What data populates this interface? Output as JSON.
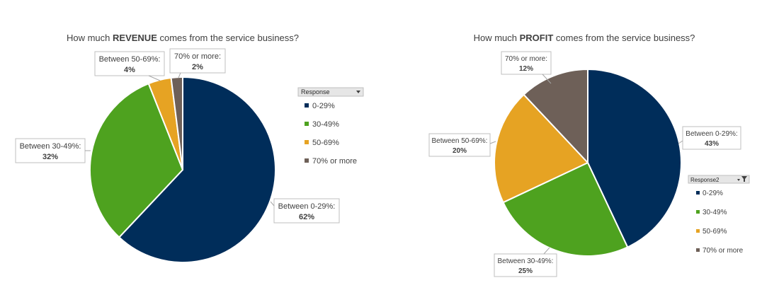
{
  "colors": {
    "0-29%": "#002d5a",
    "30-49%": "#4ea21f",
    "50-69%": "#e6a323",
    "70% or more": "#6e6058",
    "background": "#ffffff"
  },
  "chart_data": [
    {
      "type": "pie",
      "title_prefix": "How much ",
      "title_emphasis": "REVENUE",
      "title_suffix": " comes from the service business?",
      "legend_header": "Response",
      "legend_entries": [
        "0-29%",
        "30-49%",
        "50-69%",
        "70% or more"
      ],
      "legend_placement": "right",
      "series": [
        {
          "values": [
            62,
            32,
            4,
            2
          ],
          "labels": [
            "Between 0-29%:",
            "Between 30-49%:",
            "Between 50-69%:",
            "70% or more:"
          ],
          "percent_labels": [
            "62%",
            "32%",
            "4%",
            "2%"
          ]
        }
      ]
    },
    {
      "type": "pie",
      "title_prefix": "How much ",
      "title_emphasis": "PROFIT",
      "title_suffix": " comes from the service business?",
      "legend_header": "Response2",
      "legend_entries": [
        "0-29%",
        "30-49%",
        "50-69%",
        "70% or more"
      ],
      "legend_placement": "right",
      "series": [
        {
          "values": [
            43,
            25,
            20,
            12
          ],
          "labels": [
            "Between 0-29%:",
            "Between 30-49%:",
            "Between 50-69%:",
            "70% or more:"
          ],
          "percent_labels": [
            "43%",
            "25%",
            "20%",
            "12%"
          ]
        }
      ]
    }
  ]
}
